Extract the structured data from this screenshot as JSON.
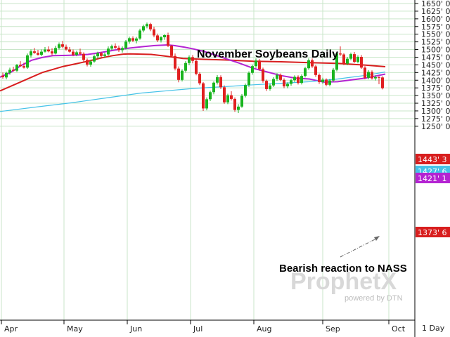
{
  "chart_data": {
    "type": "candlestick",
    "title": "November Soybeans Daily",
    "annotation": "Bearish reaction to NASS",
    "interval_label": "1 Day",
    "watermark": {
      "brand": "ProphetX",
      "tagline": "powered by DTN"
    },
    "x_labels": [
      "Apr",
      "May",
      "Jun",
      "Jul",
      "Aug",
      "Sep",
      "Oct"
    ],
    "y_range": [
      1225,
      1650
    ],
    "y_ticks": [
      "1650' 0",
      "1625' 0",
      "1600' 0",
      "1575' 0",
      "1550' 0",
      "1525' 0",
      "1500' 0",
      "1475' 0",
      "1450' 0",
      "1425' 0",
      "1400' 0",
      "1375' 0",
      "1350' 0",
      "1325' 0",
      "1300' 0",
      "1275' 0",
      "1250' 0"
    ],
    "last_values": [
      {
        "label": "1443' 3",
        "value": 1443.4,
        "color": "#d81e1e"
      },
      {
        "label": "1427' 6",
        "value": 1427.75,
        "color": "#44c2e8"
      },
      {
        "label": "1421' 1",
        "value": 1421.1,
        "color": "#b423d2"
      },
      {
        "label": "1373' 6",
        "value": 1373.75,
        "color": "#d81e1e"
      }
    ],
    "series": [
      {
        "name": "",
        "color": "#d81e1e",
        "points": [
          [
            0,
            1365
          ],
          [
            30,
            1395
          ],
          [
            60,
            1425
          ],
          [
            90,
            1445
          ],
          [
            105,
            1452
          ],
          [
            125,
            1462
          ],
          [
            145,
            1473
          ],
          [
            160,
            1480
          ],
          [
            175,
            1485
          ],
          [
            185,
            1486
          ],
          [
            200,
            1485
          ],
          [
            215,
            1484
          ],
          [
            230,
            1480
          ],
          [
            260,
            1471
          ],
          [
            290,
            1468
          ],
          [
            320,
            1466
          ],
          [
            360,
            1462
          ],
          [
            400,
            1460
          ],
          [
            440,
            1457
          ],
          [
            480,
            1455
          ],
          [
            500,
            1452
          ],
          [
            520,
            1449
          ],
          [
            548,
            1444
          ]
        ]
      },
      {
        "name": "",
        "color": "#b423d2",
        "points": [
          [
            0,
            1410
          ],
          [
            15,
            1425
          ],
          [
            30,
            1448
          ],
          [
            45,
            1465
          ],
          [
            60,
            1474
          ],
          [
            75,
            1480
          ],
          [
            95,
            1481
          ],
          [
            110,
            1482
          ],
          [
            125,
            1484
          ],
          [
            145,
            1491
          ],
          [
            165,
            1499
          ],
          [
            185,
            1505
          ],
          [
            205,
            1510
          ],
          [
            220,
            1513
          ],
          [
            238,
            1515
          ],
          [
            248,
            1513
          ],
          [
            262,
            1508
          ],
          [
            275,
            1502
          ],
          [
            290,
            1494
          ],
          [
            305,
            1483
          ],
          [
            320,
            1471
          ],
          [
            340,
            1456
          ],
          [
            360,
            1439
          ],
          [
            380,
            1427
          ],
          [
            400,
            1415
          ],
          [
            420,
            1407
          ],
          [
            440,
            1404
          ],
          [
            460,
            1394
          ],
          [
            480,
            1395
          ],
          [
            500,
            1401
          ],
          [
            520,
            1407
          ],
          [
            548,
            1420
          ]
        ]
      },
      {
        "name": "",
        "color": "#44c2e8",
        "points": [
          [
            0,
            1298
          ],
          [
            60,
            1315
          ],
          [
            100,
            1326
          ],
          [
            150,
            1342
          ],
          [
            200,
            1358
          ],
          [
            250,
            1368
          ],
          [
            280,
            1374
          ],
          [
            320,
            1379
          ],
          [
            360,
            1385
          ],
          [
            400,
            1390
          ],
          [
            440,
            1395
          ],
          [
            480,
            1404
          ],
          [
            520,
            1416
          ],
          [
            548,
            1427
          ]
        ]
      }
    ],
    "candles": [
      [
        0,
        1415,
        1425,
        1405,
        1410
      ],
      [
        1,
        1409,
        1428,
        1403,
        1424
      ],
      [
        2,
        1424,
        1441,
        1418,
        1434
      ],
      [
        3,
        1434,
        1444,
        1428,
        1431
      ],
      [
        4,
        1431,
        1453,
        1427,
        1450
      ],
      [
        5,
        1450,
        1462,
        1444,
        1446
      ],
      [
        6,
        1446,
        1457,
        1438,
        1441
      ],
      [
        7,
        1441,
        1487,
        1437,
        1481
      ],
      [
        8,
        1481,
        1500,
        1474,
        1494
      ],
      [
        9,
        1494,
        1505,
        1486,
        1489
      ],
      [
        10,
        1489,
        1499,
        1480,
        1483
      ],
      [
        11,
        1483,
        1500,
        1478,
        1493
      ],
      [
        12,
        1493,
        1508,
        1490,
        1500
      ],
      [
        13,
        1500,
        1510,
        1491,
        1494
      ],
      [
        14,
        1494,
        1504,
        1481,
        1487
      ],
      [
        15,
        1487,
        1512,
        1484,
        1505
      ],
      [
        16,
        1505,
        1523,
        1500,
        1517
      ],
      [
        17,
        1517,
        1528,
        1504,
        1509
      ],
      [
        18,
        1509,
        1516,
        1496,
        1500
      ],
      [
        19,
        1500,
        1508,
        1490,
        1493
      ],
      [
        20,
        1493,
        1500,
        1478,
        1483
      ],
      [
        21,
        1483,
        1496,
        1478,
        1491
      ],
      [
        22,
        1491,
        1503,
        1482,
        1486
      ],
      [
        23,
        1486,
        1491,
        1460,
        1466
      ],
      [
        24,
        1466,
        1471,
        1445,
        1451
      ],
      [
        25,
        1451,
        1466,
        1444,
        1461
      ],
      [
        26,
        1461,
        1484,
        1457,
        1478
      ],
      [
        27,
        1478,
        1493,
        1470,
        1488
      ],
      [
        28,
        1488,
        1493,
        1475,
        1479
      ],
      [
        29,
        1479,
        1490,
        1472,
        1484
      ],
      [
        30,
        1484,
        1510,
        1480,
        1503
      ],
      [
        31,
        1503,
        1516,
        1498,
        1511
      ],
      [
        32,
        1511,
        1520,
        1502,
        1506
      ],
      [
        33,
        1506,
        1513,
        1492,
        1498
      ],
      [
        34,
        1498,
        1510,
        1490,
        1505
      ],
      [
        35,
        1505,
        1531,
        1500,
        1526
      ],
      [
        36,
        1526,
        1542,
        1519,
        1537
      ],
      [
        37,
        1537,
        1543,
        1524,
        1529
      ],
      [
        38,
        1529,
        1541,
        1520,
        1536
      ],
      [
        39,
        1536,
        1568,
        1532,
        1562
      ],
      [
        40,
        1562,
        1581,
        1556,
        1576
      ],
      [
        41,
        1576,
        1588,
        1569,
        1583
      ],
      [
        42,
        1583,
        1587,
        1560,
        1566
      ],
      [
        43,
        1566,
        1574,
        1540,
        1546
      ],
      [
        44,
        1546,
        1552,
        1524,
        1530
      ],
      [
        45,
        1530,
        1544,
        1523,
        1540
      ],
      [
        46,
        1540,
        1550,
        1532,
        1547
      ],
      [
        47,
        1547,
        1555,
        1508,
        1512
      ],
      [
        48,
        1512,
        1515,
        1474,
        1479
      ],
      [
        49,
        1479,
        1487,
        1432,
        1438
      ],
      [
        50,
        1438,
        1445,
        1393,
        1401
      ],
      [
        51,
        1401,
        1436,
        1396,
        1431
      ],
      [
        52,
        1431,
        1462,
        1425,
        1456
      ],
      [
        53,
        1456,
        1481,
        1449,
        1475
      ],
      [
        54,
        1475,
        1482,
        1455,
        1463
      ],
      [
        55,
        1463,
        1469,
        1416,
        1421
      ],
      [
        56,
        1421,
        1426,
        1384,
        1390
      ],
      [
        57,
        1390,
        1394,
        1300,
        1308
      ],
      [
        58,
        1308,
        1344,
        1302,
        1338
      ],
      [
        59,
        1338,
        1366,
        1332,
        1361
      ],
      [
        60,
        1361,
        1396,
        1354,
        1392
      ],
      [
        61,
        1392,
        1417,
        1386,
        1410
      ],
      [
        62,
        1410,
        1416,
        1371,
        1377
      ],
      [
        63,
        1377,
        1383,
        1323,
        1328
      ],
      [
        64,
        1328,
        1356,
        1322,
        1351
      ],
      [
        65,
        1351,
        1364,
        1334,
        1339
      ],
      [
        66,
        1339,
        1344,
        1297,
        1303
      ],
      [
        67,
        1303,
        1322,
        1293,
        1314
      ],
      [
        68,
        1314,
        1355,
        1310,
        1349
      ],
      [
        69,
        1349,
        1389,
        1344,
        1384
      ],
      [
        70,
        1384,
        1429,
        1378,
        1424
      ],
      [
        71,
        1424,
        1451,
        1418,
        1446
      ],
      [
        72,
        1446,
        1471,
        1440,
        1464
      ],
      [
        73,
        1464,
        1469,
        1431,
        1436
      ],
      [
        74,
        1436,
        1441,
        1392,
        1398
      ],
      [
        75,
        1398,
        1402,
        1365,
        1371
      ],
      [
        76,
        1371,
        1389,
        1366,
        1383
      ],
      [
        77,
        1383,
        1410,
        1378,
        1404
      ],
      [
        78,
        1404,
        1423,
        1398,
        1417
      ],
      [
        79,
        1417,
        1422,
        1397,
        1401
      ],
      [
        80,
        1401,
        1406,
        1374,
        1380
      ],
      [
        81,
        1380,
        1393,
        1374,
        1388
      ],
      [
        82,
        1388,
        1405,
        1382,
        1400
      ],
      [
        83,
        1400,
        1416,
        1394,
        1411
      ],
      [
        84,
        1411,
        1416,
        1386,
        1391
      ],
      [
        85,
        1391,
        1419,
        1386,
        1414
      ],
      [
        86,
        1414,
        1444,
        1409,
        1439
      ],
      [
        87,
        1439,
        1471,
        1434,
        1465
      ],
      [
        88,
        1465,
        1471,
        1440,
        1445
      ],
      [
        89,
        1445,
        1450,
        1411,
        1417
      ],
      [
        90,
        1417,
        1422,
        1388,
        1394
      ],
      [
        91,
        1394,
        1408,
        1388,
        1402
      ],
      [
        92,
        1402,
        1406,
        1380,
        1385
      ],
      [
        93,
        1385,
        1404,
        1380,
        1399
      ],
      [
        94,
        1399,
        1440,
        1395,
        1434
      ],
      [
        95,
        1434,
        1493,
        1429,
        1487
      ],
      [
        96,
        1487,
        1510,
        1479,
        1484
      ],
      [
        97,
        1484,
        1488,
        1449,
        1454
      ],
      [
        98,
        1454,
        1476,
        1449,
        1470
      ],
      [
        99,
        1470,
        1490,
        1465,
        1485
      ],
      [
        100,
        1485,
        1492,
        1456,
        1460
      ],
      [
        101,
        1460,
        1481,
        1455,
        1476
      ],
      [
        102,
        1476,
        1482,
        1437,
        1441
      ],
      [
        103,
        1441,
        1446,
        1403,
        1408
      ],
      [
        104,
        1408,
        1433,
        1403,
        1427
      ],
      [
        105,
        1427,
        1432,
        1402,
        1406
      ],
      [
        106,
        1406,
        1416,
        1399,
        1410
      ],
      [
        107,
        1410,
        1413,
        1387,
        1409
      ],
      [
        108,
        1409,
        1413,
        1370,
        1374
      ]
    ]
  }
}
